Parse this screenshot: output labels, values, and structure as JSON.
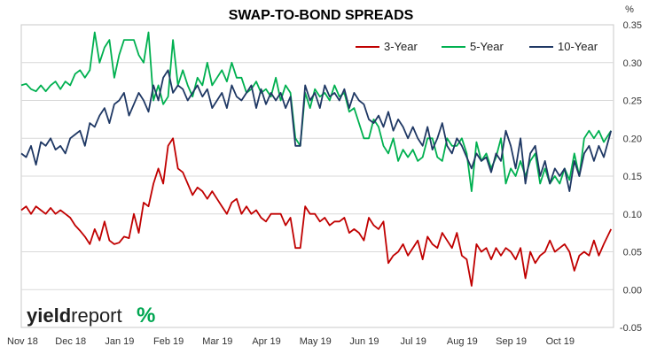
{
  "chart_data": {
    "type": "line",
    "title": "SWAP-TO-BOND SPREADS",
    "y_unit": "%",
    "ylim": [
      -0.05,
      0.35
    ],
    "y_ticks": [
      "0.35",
      "0.30",
      "0.25",
      "0.20",
      "0.15",
      "0.10",
      "0.05",
      "0.00",
      "-0.05"
    ],
    "x_ticks": [
      "Nov 18",
      "Dec 18",
      "Jan 19",
      "Feb 19",
      "Mar 19",
      "Apr 19",
      "May 19",
      "Jun 19",
      "Jul 19",
      "Aug 19",
      "Sep 19",
      "Oct 19"
    ],
    "gridlines": "horizontal",
    "legend_position": "top-right",
    "series": [
      {
        "name": "3-Year",
        "color": "#c00000",
        "x": [
          0,
          0.1,
          0.2,
          0.3,
          0.4,
          0.5,
          0.6,
          0.7,
          0.8,
          0.9,
          1.0,
          1.1,
          1.2,
          1.3,
          1.4,
          1.5,
          1.6,
          1.7,
          1.8,
          1.9,
          2.0,
          2.1,
          2.2,
          2.3,
          2.4,
          2.5,
          2.6,
          2.7,
          2.8,
          2.9,
          3.0,
          3.1,
          3.2,
          3.3,
          3.4,
          3.5,
          3.6,
          3.7,
          3.8,
          3.9,
          4.0,
          4.1,
          4.2,
          4.3,
          4.4,
          4.5,
          4.6,
          4.7,
          4.8,
          4.9,
          5.0,
          5.1,
          5.2,
          5.3,
          5.4,
          5.5,
          5.6,
          5.7,
          5.8,
          5.9,
          6.0,
          6.1,
          6.2,
          6.3,
          6.4,
          6.5,
          6.6,
          6.7,
          6.8,
          6.9,
          7.0,
          7.1,
          7.2,
          7.3,
          7.4,
          7.5,
          7.6,
          7.7,
          7.8,
          7.9,
          8.0,
          8.1,
          8.2,
          8.3,
          8.4,
          8.5,
          8.6,
          8.7,
          8.8,
          8.9,
          9.0,
          9.1,
          9.2,
          9.3,
          9.4,
          9.5,
          9.6,
          9.7,
          9.8,
          9.9,
          10.0,
          10.1,
          10.2,
          10.3,
          10.4,
          10.5,
          10.6,
          10.7,
          10.8,
          10.9,
          11.0,
          11.1,
          11.2,
          11.3,
          11.4,
          11.5,
          11.6,
          11.7,
          11.8,
          11.9,
          12.05
        ],
        "values": [
          0.105,
          0.11,
          0.1,
          0.11,
          0.105,
          0.1,
          0.108,
          0.1,
          0.105,
          0.1,
          0.095,
          0.085,
          0.078,
          0.07,
          0.06,
          0.08,
          0.065,
          0.09,
          0.065,
          0.06,
          0.062,
          0.07,
          0.068,
          0.1,
          0.075,
          0.115,
          0.11,
          0.14,
          0.16,
          0.14,
          0.19,
          0.2,
          0.16,
          0.155,
          0.14,
          0.125,
          0.135,
          0.13,
          0.12,
          0.13,
          0.12,
          0.11,
          0.1,
          0.115,
          0.12,
          0.1,
          0.11,
          0.1,
          0.105,
          0.095,
          0.09,
          0.1,
          0.1,
          0.1,
          0.085,
          0.095,
          0.055,
          0.055,
          0.11,
          0.1,
          0.1,
          0.09,
          0.095,
          0.085,
          0.09,
          0.09,
          0.095,
          0.075,
          0.08,
          0.075,
          0.065,
          0.095,
          0.085,
          0.08,
          0.09,
          0.035,
          0.045,
          0.05,
          0.06,
          0.045,
          0.055,
          0.065,
          0.04,
          0.07,
          0.06,
          0.055,
          0.075,
          0.065,
          0.055,
          0.075,
          0.045,
          0.04,
          0.005,
          0.06,
          0.05,
          0.055,
          0.04,
          0.055,
          0.045,
          0.055,
          0.05,
          0.04,
          0.055,
          0.015,
          0.05,
          0.035,
          0.045,
          0.05,
          0.065,
          0.05,
          0.055,
          0.06,
          0.05,
          0.025,
          0.045,
          0.05,
          0.045,
          0.065,
          0.045,
          0.06,
          0.08
        ]
      },
      {
        "name": "5-Year",
        "color": "#00b050",
        "x": [
          0,
          0.1,
          0.2,
          0.3,
          0.4,
          0.5,
          0.6,
          0.7,
          0.8,
          0.9,
          1.0,
          1.1,
          1.2,
          1.3,
          1.4,
          1.5,
          1.6,
          1.7,
          1.8,
          1.9,
          2.0,
          2.1,
          2.2,
          2.3,
          2.4,
          2.5,
          2.6,
          2.7,
          2.8,
          2.9,
          3.0,
          3.1,
          3.2,
          3.3,
          3.4,
          3.5,
          3.6,
          3.7,
          3.8,
          3.9,
          4.0,
          4.1,
          4.2,
          4.3,
          4.4,
          4.5,
          4.6,
          4.7,
          4.8,
          4.9,
          5.0,
          5.1,
          5.2,
          5.3,
          5.4,
          5.5,
          5.6,
          5.7,
          5.8,
          5.9,
          6.0,
          6.1,
          6.2,
          6.3,
          6.4,
          6.5,
          6.6,
          6.7,
          6.8,
          6.9,
          7.0,
          7.1,
          7.2,
          7.3,
          7.4,
          7.5,
          7.6,
          7.7,
          7.8,
          7.9,
          8.0,
          8.1,
          8.2,
          8.3,
          8.4,
          8.5,
          8.6,
          8.7,
          8.8,
          8.9,
          9.0,
          9.1,
          9.2,
          9.3,
          9.4,
          9.5,
          9.6,
          9.7,
          9.8,
          9.9,
          10.0,
          10.1,
          10.2,
          10.3,
          10.4,
          10.5,
          10.6,
          10.7,
          10.8,
          10.9,
          11.0,
          11.1,
          11.2,
          11.3,
          11.4,
          11.5,
          11.6,
          11.7,
          11.8,
          11.9,
          12.05
        ],
        "values": [
          0.27,
          0.272,
          0.265,
          0.262,
          0.27,
          0.262,
          0.27,
          0.275,
          0.265,
          0.275,
          0.27,
          0.285,
          0.29,
          0.28,
          0.29,
          0.34,
          0.3,
          0.32,
          0.33,
          0.28,
          0.31,
          0.33,
          0.33,
          0.33,
          0.31,
          0.3,
          0.34,
          0.25,
          0.27,
          0.245,
          0.255,
          0.33,
          0.27,
          0.29,
          0.27,
          0.255,
          0.28,
          0.27,
          0.3,
          0.27,
          0.28,
          0.29,
          0.275,
          0.3,
          0.28,
          0.28,
          0.26,
          0.265,
          0.275,
          0.26,
          0.265,
          0.255,
          0.28,
          0.25,
          0.27,
          0.26,
          0.2,
          0.19,
          0.26,
          0.24,
          0.265,
          0.255,
          0.26,
          0.25,
          0.27,
          0.255,
          0.26,
          0.235,
          0.24,
          0.22,
          0.2,
          0.2,
          0.225,
          0.215,
          0.19,
          0.18,
          0.2,
          0.17,
          0.185,
          0.175,
          0.185,
          0.17,
          0.175,
          0.2,
          0.2,
          0.175,
          0.17,
          0.2,
          0.19,
          0.19,
          0.2,
          0.18,
          0.13,
          0.195,
          0.17,
          0.18,
          0.16,
          0.175,
          0.2,
          0.14,
          0.16,
          0.15,
          0.17,
          0.15,
          0.17,
          0.18,
          0.14,
          0.16,
          0.14,
          0.15,
          0.14,
          0.16,
          0.145,
          0.18,
          0.15,
          0.2,
          0.21,
          0.2,
          0.21,
          0.195,
          0.21
        ]
      },
      {
        "name": "10-Year",
        "color": "#1f3864",
        "x": [
          0,
          0.1,
          0.2,
          0.3,
          0.4,
          0.5,
          0.6,
          0.7,
          0.8,
          0.9,
          1.0,
          1.1,
          1.2,
          1.3,
          1.4,
          1.5,
          1.6,
          1.7,
          1.8,
          1.9,
          2.0,
          2.1,
          2.2,
          2.3,
          2.4,
          2.5,
          2.6,
          2.7,
          2.8,
          2.9,
          3.0,
          3.1,
          3.2,
          3.3,
          3.4,
          3.5,
          3.6,
          3.7,
          3.8,
          3.9,
          4.0,
          4.1,
          4.2,
          4.3,
          4.4,
          4.5,
          4.6,
          4.7,
          4.8,
          4.9,
          5.0,
          5.1,
          5.2,
          5.3,
          5.4,
          5.5,
          5.6,
          5.7,
          5.8,
          5.9,
          6.0,
          6.1,
          6.2,
          6.3,
          6.4,
          6.5,
          6.6,
          6.7,
          6.8,
          6.9,
          7.0,
          7.1,
          7.2,
          7.3,
          7.4,
          7.5,
          7.6,
          7.7,
          7.8,
          7.9,
          8.0,
          8.1,
          8.2,
          8.3,
          8.4,
          8.5,
          8.6,
          8.7,
          8.8,
          8.9,
          9.0,
          9.1,
          9.2,
          9.3,
          9.4,
          9.5,
          9.6,
          9.7,
          9.8,
          9.9,
          10.0,
          10.1,
          10.2,
          10.3,
          10.4,
          10.5,
          10.6,
          10.7,
          10.8,
          10.9,
          11.0,
          11.1,
          11.2,
          11.3,
          11.4,
          11.5,
          11.6,
          11.7,
          11.8,
          11.9,
          12.05
        ],
        "values": [
          0.18,
          0.175,
          0.19,
          0.165,
          0.195,
          0.19,
          0.2,
          0.185,
          0.19,
          0.18,
          0.2,
          0.205,
          0.21,
          0.19,
          0.22,
          0.215,
          0.23,
          0.24,
          0.22,
          0.245,
          0.25,
          0.26,
          0.23,
          0.245,
          0.26,
          0.25,
          0.235,
          0.27,
          0.25,
          0.28,
          0.29,
          0.26,
          0.27,
          0.265,
          0.25,
          0.26,
          0.27,
          0.255,
          0.265,
          0.24,
          0.25,
          0.26,
          0.24,
          0.27,
          0.255,
          0.25,
          0.26,
          0.27,
          0.24,
          0.265,
          0.245,
          0.26,
          0.25,
          0.26,
          0.24,
          0.255,
          0.19,
          0.19,
          0.27,
          0.25,
          0.26,
          0.24,
          0.27,
          0.255,
          0.26,
          0.25,
          0.265,
          0.24,
          0.26,
          0.25,
          0.245,
          0.225,
          0.22,
          0.23,
          0.215,
          0.235,
          0.21,
          0.225,
          0.215,
          0.2,
          0.215,
          0.2,
          0.19,
          0.215,
          0.185,
          0.2,
          0.22,
          0.19,
          0.18,
          0.2,
          0.19,
          0.175,
          0.16,
          0.18,
          0.17,
          0.175,
          0.155,
          0.18,
          0.17,
          0.21,
          0.19,
          0.16,
          0.2,
          0.14,
          0.18,
          0.19,
          0.15,
          0.17,
          0.14,
          0.16,
          0.15,
          0.16,
          0.13,
          0.17,
          0.15,
          0.18,
          0.19,
          0.17,
          0.19,
          0.175,
          0.21
        ]
      }
    ]
  },
  "branding": {
    "logo_part1": "yield",
    "logo_part2": "report",
    "logo_pct": "%",
    "logo_colors": [
      "#00a651",
      "#c00000"
    ]
  }
}
